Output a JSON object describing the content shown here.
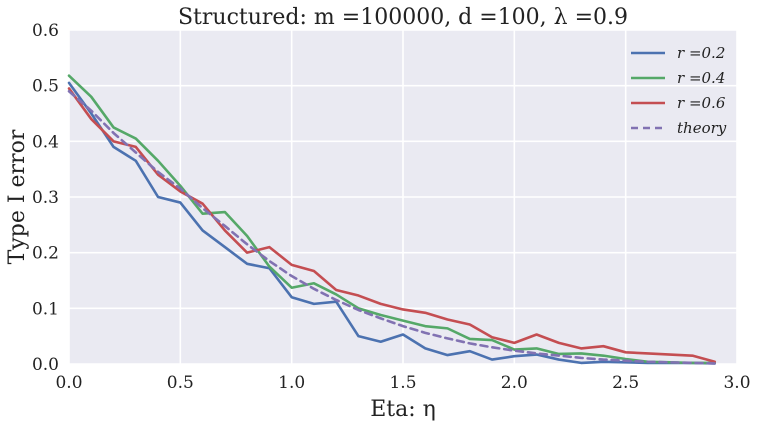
{
  "chart_data": {
    "type": "line",
    "title": "Structured: m =100000, d =100, λ =0.9",
    "xlabel": "Eta: η",
    "ylabel": "Type I error",
    "xlim": [
      0.0,
      3.0
    ],
    "ylim": [
      0.0,
      0.6
    ],
    "xticks": [
      0.0,
      0.5,
      1.0,
      1.5,
      2.0,
      2.5,
      3.0
    ],
    "xtick_labels": [
      "0.0",
      "0.5",
      "1.0",
      "1.5",
      "2.0",
      "2.5",
      "3.0"
    ],
    "yticks": [
      0.0,
      0.1,
      0.2,
      0.3,
      0.4,
      0.5,
      0.6
    ],
    "ytick_labels": [
      "0.0",
      "0.1",
      "0.2",
      "0.3",
      "0.4",
      "0.5",
      "0.6"
    ],
    "grid": true,
    "legend_position": "top-right",
    "x": [
      0.0,
      0.1,
      0.2,
      0.3,
      0.4,
      0.5,
      0.6,
      0.7,
      0.8,
      0.9,
      1.0,
      1.1,
      1.2,
      1.3,
      1.4,
      1.5,
      1.6,
      1.7,
      1.8,
      1.9,
      2.0,
      2.1,
      2.2,
      2.3,
      2.4,
      2.5,
      2.6,
      2.7,
      2.8,
      2.9
    ],
    "series": [
      {
        "name": "r =0.2",
        "color": "#4c72b0",
        "dashed": false,
        "values": [
          0.505,
          0.45,
          0.39,
          0.365,
          0.3,
          0.29,
          0.24,
          0.21,
          0.18,
          0.172,
          0.12,
          0.108,
          0.112,
          0.05,
          0.04,
          0.053,
          0.028,
          0.016,
          0.023,
          0.008,
          0.014,
          0.017,
          0.008,
          0.002,
          0.004,
          0.003,
          0.002,
          0.002,
          0.002,
          0.001
        ]
      },
      {
        "name": "r =0.4",
        "color": "#55a868",
        "dashed": false,
        "values": [
          0.518,
          0.48,
          0.425,
          0.405,
          0.365,
          0.32,
          0.27,
          0.273,
          0.23,
          0.175,
          0.137,
          0.145,
          0.125,
          0.1,
          0.088,
          0.078,
          0.068,
          0.064,
          0.045,
          0.043,
          0.026,
          0.028,
          0.018,
          0.019,
          0.015,
          0.009,
          0.004,
          0.003,
          0.002,
          0.002
        ]
      },
      {
        "name": "r =0.6",
        "color": "#c44e52",
        "dashed": false,
        "values": [
          0.495,
          0.44,
          0.4,
          0.39,
          0.34,
          0.31,
          0.288,
          0.24,
          0.2,
          0.21,
          0.178,
          0.167,
          0.133,
          0.123,
          0.108,
          0.098,
          0.092,
          0.08,
          0.071,
          0.048,
          0.038,
          0.053,
          0.038,
          0.028,
          0.032,
          0.021,
          0.019,
          0.017,
          0.015,
          0.004
        ]
      },
      {
        "name": "theory",
        "color": "#8172b2",
        "dashed": true,
        "values": [
          0.49,
          0.455,
          0.415,
          0.38,
          0.345,
          0.315,
          0.28,
          0.248,
          0.215,
          0.185,
          0.158,
          0.135,
          0.115,
          0.097,
          0.082,
          0.068,
          0.056,
          0.046,
          0.037,
          0.03,
          0.024,
          0.019,
          0.015,
          0.011,
          0.008,
          0.006,
          0.004,
          0.003,
          0.002,
          0.001
        ]
      }
    ]
  }
}
